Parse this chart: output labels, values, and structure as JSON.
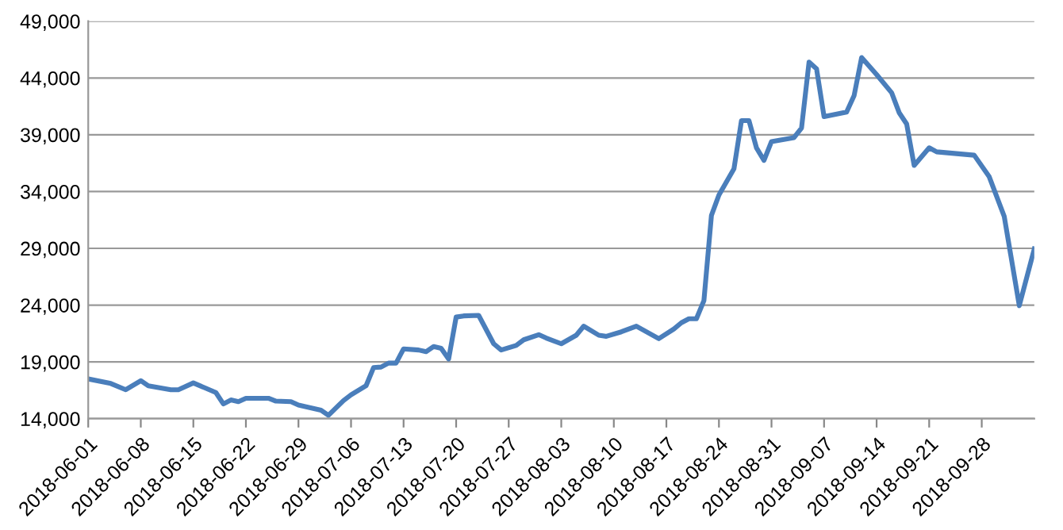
{
  "chart_data": {
    "type": "line",
    "x": [
      "2018-06-01",
      "2018-06-04",
      "2018-06-06",
      "2018-06-08",
      "2018-06-09",
      "2018-06-12",
      "2018-06-13",
      "2018-06-15",
      "2018-06-18",
      "2018-06-19",
      "2018-06-20",
      "2018-06-21",
      "2018-06-22",
      "2018-06-25",
      "2018-06-26",
      "2018-06-28",
      "2018-06-29",
      "2018-07-02",
      "2018-07-03",
      "2018-07-05",
      "2018-07-06",
      "2018-07-08",
      "2018-07-09",
      "2018-07-10",
      "2018-07-11",
      "2018-07-12",
      "2018-07-13",
      "2018-07-15",
      "2018-07-16",
      "2018-07-17",
      "2018-07-18",
      "2018-07-19",
      "2018-07-20",
      "2018-07-21",
      "2018-07-23",
      "2018-07-25",
      "2018-07-26",
      "2018-07-28",
      "2018-07-29",
      "2018-07-31",
      "2018-08-01",
      "2018-08-03",
      "2018-08-05",
      "2018-08-06",
      "2018-08-08",
      "2018-08-09",
      "2018-08-11",
      "2018-08-13",
      "2018-08-16",
      "2018-08-18",
      "2018-08-19",
      "2018-08-20",
      "2018-08-21",
      "2018-08-22",
      "2018-08-23",
      "2018-08-24",
      "2018-08-26",
      "2018-08-27",
      "2018-08-28",
      "2018-08-29",
      "2018-08-30",
      "2018-08-31",
      "2018-09-03",
      "2018-09-04",
      "2018-09-05",
      "2018-09-06",
      "2018-09-07",
      "2018-09-10",
      "2018-09-11",
      "2018-09-12",
      "2018-09-14",
      "2018-09-16",
      "2018-09-17",
      "2018-09-18",
      "2018-09-19",
      "2018-09-21",
      "2018-09-22",
      "2018-09-27",
      "2018-09-29",
      "2018-10-01",
      "2018-10-03",
      "2018-10-05"
    ],
    "series": [
      {
        "color": "#4a7ebb",
        "values": [
          17500,
          17100,
          16550,
          17350,
          16900,
          16550,
          16550,
          17150,
          16300,
          15300,
          15650,
          15500,
          15800,
          15800,
          15550,
          15500,
          15200,
          14750,
          14300,
          15600,
          16100,
          16900,
          18500,
          18550,
          18900,
          18900,
          20150,
          20050,
          19900,
          20350,
          20200,
          19250,
          22950,
          23050,
          23100,
          20600,
          20050,
          20450,
          20950,
          21400,
          21100,
          20600,
          21350,
          22150,
          21350,
          21250,
          21650,
          22150,
          21050,
          21900,
          22450,
          22800,
          22800,
          24400,
          31900,
          33700,
          36000,
          40250,
          40250,
          37850,
          36750,
          38400,
          38750,
          39600,
          45400,
          44800,
          40600,
          41000,
          42450,
          45800,
          44300,
          42700,
          40950,
          39950,
          36300,
          37850,
          37500,
          37200,
          35300,
          31800,
          23950,
          28950
        ]
      }
    ],
    "xlim": [
      "2018-06-01",
      "2018-10-05"
    ],
    "xticks": [
      "2018-06-01",
      "2018-06-08",
      "2018-06-15",
      "2018-06-22",
      "2018-06-29",
      "2018-07-06",
      "2018-07-13",
      "2018-07-20",
      "2018-07-27",
      "2018-08-03",
      "2018-08-10",
      "2018-08-17",
      "2018-08-24",
      "2018-08-31",
      "2018-09-07",
      "2018-09-14",
      "2018-09-21",
      "2018-09-28"
    ],
    "ylim": [
      14000,
      49000
    ],
    "yticks": [
      {
        "value": 14000,
        "label": "14,000"
      },
      {
        "value": 19000,
        "label": "19,000"
      },
      {
        "value": 24000,
        "label": "24,000"
      },
      {
        "value": 29000,
        "label": "29,000"
      },
      {
        "value": 34000,
        "label": "34,000"
      },
      {
        "value": 39000,
        "label": "39,000"
      },
      {
        "value": 44000,
        "label": "44,000"
      },
      {
        "value": 49000,
        "label": "49,000"
      }
    ],
    "grid": "y",
    "marker": "none",
    "line_style": "solid"
  }
}
